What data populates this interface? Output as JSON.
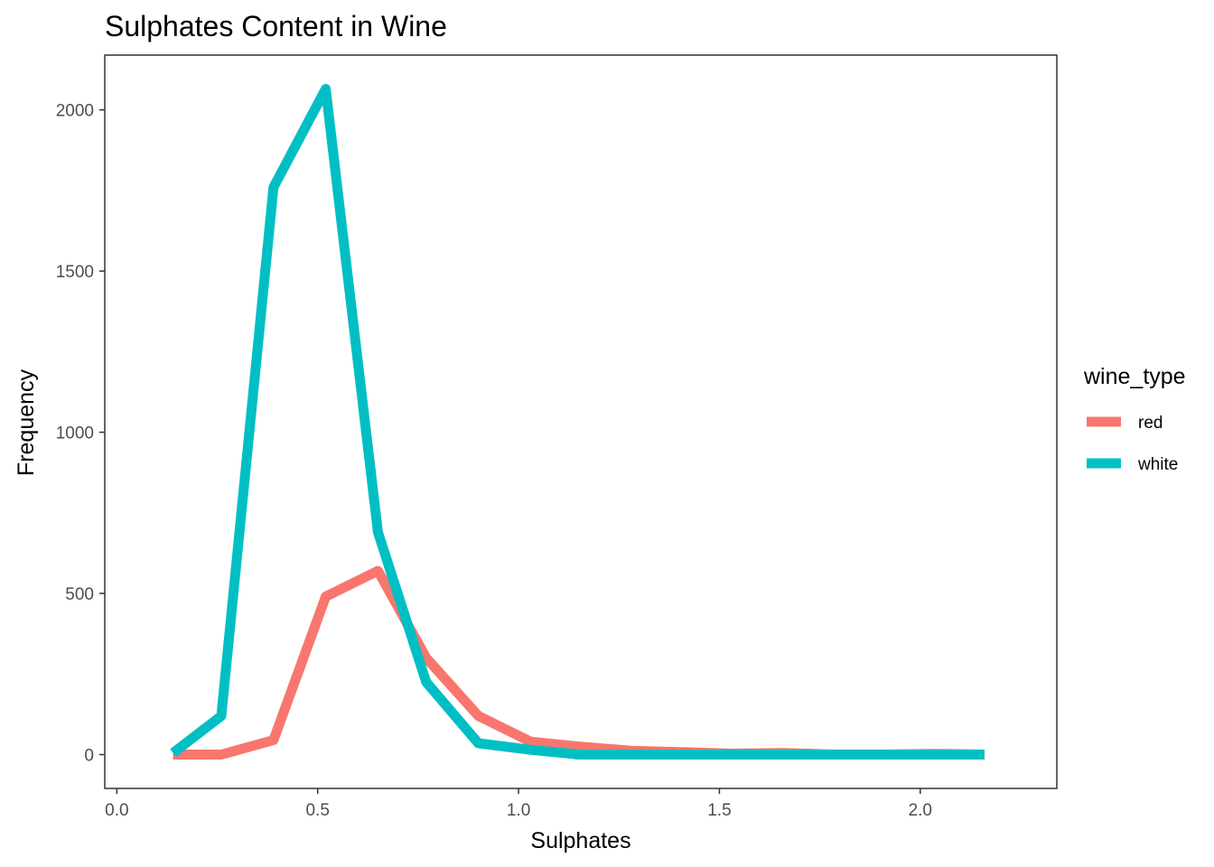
{
  "chart_data": {
    "type": "line",
    "title": "Sulphates Content in Wine",
    "xlabel": "Sulphates",
    "ylabel": "Frequency",
    "xlim": [
      -0.03,
      2.34
    ],
    "ylim": [
      -105,
      2170
    ],
    "x_ticks": [
      0.0,
      0.5,
      1.0,
      1.5,
      2.0
    ],
    "x_tick_labels": [
      "0.0",
      "0.5",
      "1.0",
      "1.5",
      "2.0"
    ],
    "y_ticks": [
      0,
      500,
      1000,
      1500,
      2000
    ],
    "y_tick_labels": [
      "0",
      "500",
      "1000",
      "1500",
      "2000"
    ],
    "legend": {
      "title": "wine_type",
      "position": "right"
    },
    "series": [
      {
        "name": "red",
        "color": "#F8766D",
        "x": [
          0.14,
          0.26,
          0.39,
          0.52,
          0.65,
          0.77,
          0.9,
          1.03,
          1.15,
          1.28,
          1.4,
          1.53,
          1.66,
          1.78,
          1.91,
          2.04,
          2.16
        ],
        "y": [
          0,
          0,
          45,
          490,
          570,
          300,
          120,
          40,
          25,
          12,
          8,
          3,
          5,
          0,
          0,
          2,
          0
        ]
      },
      {
        "name": "white",
        "color": "#00BFC4",
        "x": [
          0.14,
          0.26,
          0.39,
          0.52,
          0.65,
          0.77,
          0.9,
          1.03,
          1.15,
          1.28,
          1.4,
          1.53,
          1.66,
          1.78,
          1.91,
          2.04,
          2.16
        ],
        "y": [
          5,
          120,
          1760,
          2065,
          690,
          225,
          35,
          15,
          0,
          0,
          0,
          0,
          0,
          0,
          0,
          0,
          0
        ]
      }
    ]
  }
}
